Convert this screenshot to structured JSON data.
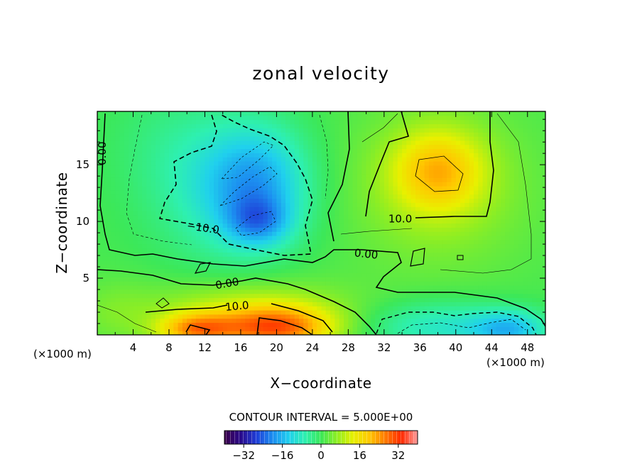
{
  "chart_data": {
    "type": "heatmap",
    "title": "zonal velocity",
    "xlabel": "X−coordinate",
    "ylabel": "Z−coordinate",
    "x_unit_left": "(×1000 m)",
    "x_unit_right": "(×1000 m)",
    "xlim": [
      0,
      50
    ],
    "ylim": [
      0,
      19.7
    ],
    "x_ticks": [
      4,
      8,
      12,
      16,
      20,
      24,
      28,
      32,
      36,
      40,
      44,
      48
    ],
    "y_ticks": [
      5,
      10,
      15
    ],
    "contour_interval_text": "CONTOUR INTERVAL = 5.000E+00",
    "contour_labels": [
      {
        "text": "0.00",
        "x": 0.6,
        "z": 16.0,
        "rotate": -90
      },
      {
        "text": "−10.0",
        "x": 11.8,
        "z": 9.4,
        "rotate": 8
      },
      {
        "text": "10.0",
        "x": 33.8,
        "z": 10.2,
        "rotate": 0
      },
      {
        "text": "0.00",
        "x": 30.0,
        "z": 7.1,
        "rotate": 6
      },
      {
        "text": "0.00",
        "x": 14.5,
        "z": 4.5,
        "rotate": -10
      },
      {
        "text": "10.0",
        "x": 15.6,
        "z": 2.5,
        "rotate": -5
      }
    ],
    "colorbar": {
      "range": [
        -40,
        40
      ],
      "ticks": [
        -32,
        -16,
        0,
        16,
        32
      ],
      "tick_labels": [
        "−32",
        "−16",
        "0",
        "16",
        "32"
      ]
    },
    "features": [
      {
        "x": 18,
        "z": 13.5,
        "value": -14,
        "sx": 4.0,
        "sz": 3.5
      },
      {
        "x": 18,
        "z": 10,
        "value": -12,
        "sx": 2.5,
        "sz": 1.5
      },
      {
        "x": 14,
        "z": 12.5,
        "value": -8,
        "sx": 5.5,
        "sz": 4.5
      },
      {
        "x": 8,
        "z": 17,
        "value": -3,
        "sx": 5,
        "sz": 4
      },
      {
        "x": 38,
        "z": 14.5,
        "value": 15,
        "sx": 3.5,
        "sz": 2.5
      },
      {
        "x": 38,
        "z": 13,
        "value": 7,
        "sx": 7,
        "sz": 5
      },
      {
        "x": 20,
        "z": 0.6,
        "value": 24,
        "sx": 4.5,
        "sz": 1.3
      },
      {
        "x": 11,
        "z": 0.5,
        "value": 20,
        "sx": 3,
        "sz": 1.0
      },
      {
        "x": 17,
        "z": 2.2,
        "value": 10,
        "sx": 8,
        "sz": 1.8
      },
      {
        "x": 38,
        "z": 0.8,
        "value": -10,
        "sx": 6,
        "sz": 1.6
      },
      {
        "x": 46,
        "z": 0.5,
        "value": -14,
        "sx": 3,
        "sz": 1.2
      },
      {
        "x": 2,
        "z": 2,
        "value": 3,
        "sx": 3,
        "sz": 2
      }
    ]
  },
  "colors": {
    "scale": [
      "#3a0048",
      "#2a0a8a",
      "#1f3fd8",
      "#1c8ef0",
      "#20d0ee",
      "#2ef0b0",
      "#3ce858",
      "#90ee22",
      "#e8f000",
      "#ffc800",
      "#ff7a00",
      "#ff2a00",
      "#ff9e9e"
    ]
  }
}
